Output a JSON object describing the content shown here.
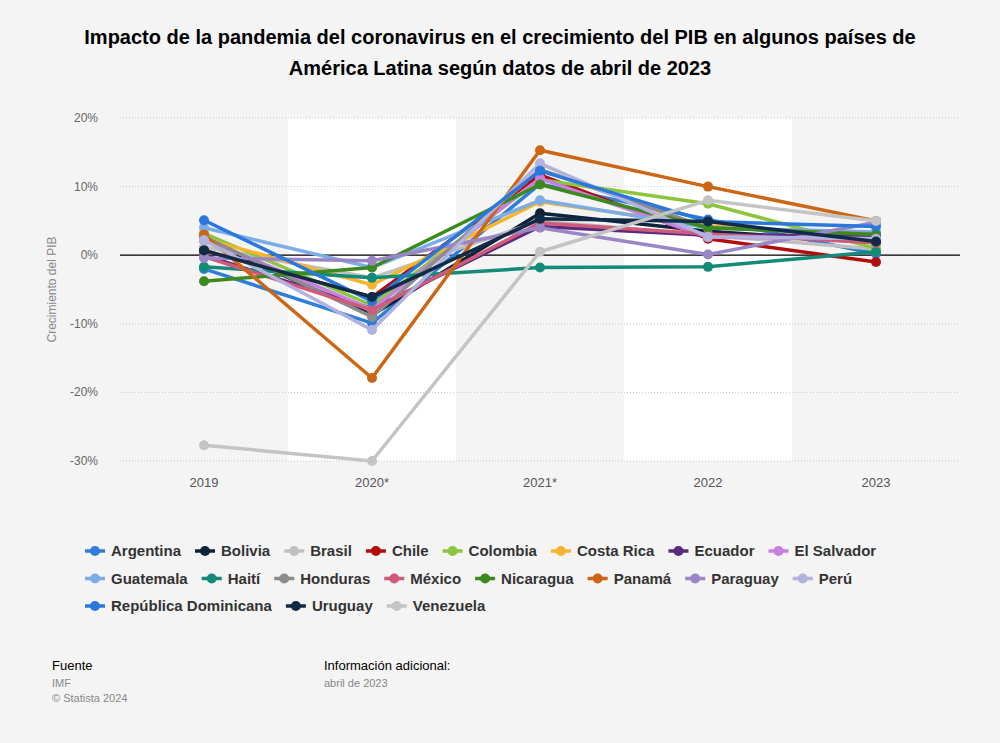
{
  "chart_data": {
    "type": "line",
    "title": "Impacto de la pandemia del coronavirus en el crecimiento del PIB en algunos países de América Latina según datos de abril de 2023",
    "y_label": "Crecimiento del PIB",
    "categories": [
      "2019",
      "2020*",
      "2021*",
      "2022",
      "2023"
    ],
    "ylim": [
      -30,
      20
    ],
    "yticks": [
      {
        "value": -30,
        "label": "-30%"
      },
      {
        "value": -20,
        "label": "-20%"
      },
      {
        "value": -10,
        "label": "-10%"
      },
      {
        "value": 0,
        "label": "0%"
      },
      {
        "value": 10,
        "label": "10%"
      },
      {
        "value": 20,
        "label": "20%"
      }
    ],
    "grid": true,
    "marker": "circle",
    "legend": "bottom",
    "series": [
      {
        "name": "Argentina",
        "color": "#2f7ed8",
        "values": [
          -2.0,
          -9.9,
          10.4,
          5.2,
          0.2
        ]
      },
      {
        "name": "Bolivia",
        "color": "#0d233a",
        "values": [
          2.2,
          -8.7,
          6.1,
          3.5,
          1.8
        ]
      },
      {
        "name": "Brasil",
        "color": "#c0c0c0",
        "values": [
          1.2,
          -3.3,
          5.0,
          2.9,
          0.9
        ]
      },
      {
        "name": "Chile",
        "color": "#b00d0d",
        "values": [
          0.7,
          -6.1,
          11.7,
          2.4,
          -1.0
        ]
      },
      {
        "name": "Colombia",
        "color": "#8bc63e",
        "values": [
          3.2,
          -7.3,
          11.0,
          7.5,
          1.0
        ]
      },
      {
        "name": "Costa Rica",
        "color": "#f4b62e",
        "values": [
          2.4,
          -4.3,
          7.8,
          4.3,
          2.7
        ]
      },
      {
        "name": "Ecuador",
        "color": "#5a2a7c",
        "values": [
          0.0,
          -7.8,
          4.2,
          2.9,
          2.9
        ]
      },
      {
        "name": "El Salvador",
        "color": "#c77fe0",
        "values": [
          2.4,
          -7.9,
          11.2,
          2.6,
          2.4
        ]
      },
      {
        "name": "Guatemala",
        "color": "#7cade8",
        "values": [
          4.0,
          -1.8,
          8.0,
          4.0,
          3.4
        ]
      },
      {
        "name": "Haití",
        "color": "#148a78",
        "values": [
          -1.7,
          -3.3,
          -1.8,
          -1.7,
          0.5
        ]
      },
      {
        "name": "Honduras",
        "color": "#8c8c8c",
        "values": [
          2.7,
          -9.0,
          12.5,
          4.0,
          3.1
        ]
      },
      {
        "name": "México",
        "color": "#cf5a7a",
        "values": [
          -0.2,
          -8.0,
          4.7,
          3.1,
          1.8
        ]
      },
      {
        "name": "Nicaragua",
        "color": "#3b8a1e",
        "values": [
          -3.8,
          -1.8,
          10.3,
          4.0,
          3.0
        ]
      },
      {
        "name": "Panamá",
        "color": "#cc6614",
        "values": [
          3.0,
          -17.9,
          15.3,
          10.0,
          5.0
        ]
      },
      {
        "name": "Paraguay",
        "color": "#9a86c4",
        "values": [
          -0.4,
          -0.8,
          4.0,
          0.1,
          4.8
        ]
      },
      {
        "name": "Perú",
        "color": "#b2b2de",
        "values": [
          2.2,
          -10.9,
          13.4,
          2.7,
          2.4
        ]
      },
      {
        "name": "República Dominicana",
        "color": "#2a78dc",
        "values": [
          5.1,
          -6.7,
          12.3,
          4.9,
          4.2
        ]
      },
      {
        "name": "Uruguay",
        "color": "#112a46",
        "values": [
          0.7,
          -6.1,
          5.3,
          4.9,
          2.0
        ]
      },
      {
        "name": "Venezuela",
        "color": "#c4c4c4",
        "values": [
          -27.7,
          -30.0,
          0.5,
          8.0,
          5.0
        ]
      }
    ],
    "source_label": "Fuente",
    "source": "IMF",
    "copyright": "© Statista 2024",
    "info_label": "Información adicional:",
    "info": "abril de 2023"
  }
}
